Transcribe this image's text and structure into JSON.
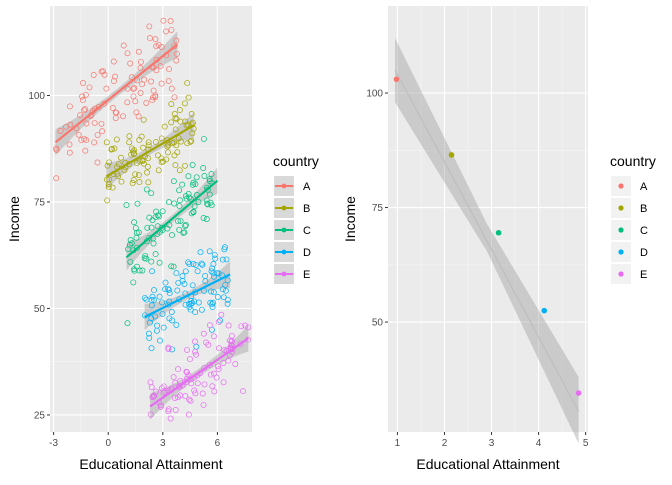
{
  "chart_data": [
    {
      "type": "scatter",
      "title": "",
      "xlabel": "Educational Attainment",
      "ylabel": "Income",
      "xlim": [
        -3.2,
        7.9
      ],
      "ylim": [
        21,
        121
      ],
      "xticks": [
        "-3",
        "0",
        "3",
        "6"
      ],
      "xtick_values": [
        -3,
        0,
        3,
        6
      ],
      "yticks": [
        "25",
        "50",
        "75",
        "100"
      ],
      "ytick_values": [
        25,
        50,
        75,
        100
      ],
      "grid": true,
      "legend_position": "right",
      "legend_title": "country",
      "smooth": "linear fit with confidence band per series",
      "series": [
        {
          "name": "A",
          "color": "#F8766D",
          "x_range": [
            -2.9,
            3.8
          ],
          "y_mean": 101,
          "y_spread": 7,
          "n": 100,
          "fit": [
            [
              -2.9,
              89
            ],
            [
              3.8,
              112
            ]
          ]
        },
        {
          "name": "B",
          "color": "#A3A500",
          "x_range": [
            -0.1,
            4.7
          ],
          "y_mean": 86,
          "y_spread": 5,
          "n": 100,
          "fit": [
            [
              -0.1,
              81
            ],
            [
              4.7,
              93
            ]
          ]
        },
        {
          "name": "C",
          "color": "#00BF7D",
          "x_range": [
            1.0,
            6.0
          ],
          "y_mean": 70,
          "y_spread": 6,
          "n": 100,
          "fit": [
            [
              1.0,
              62
            ],
            [
              6.0,
              80
            ]
          ]
        },
        {
          "name": "D",
          "color": "#00B0F6",
          "x_range": [
            2.0,
            6.7
          ],
          "y_mean": 53,
          "y_spread": 6,
          "n": 100,
          "fit": [
            [
              2.0,
              48
            ],
            [
              6.7,
              58
            ]
          ]
        },
        {
          "name": "E",
          "color": "#E76BF3",
          "x_range": [
            2.3,
            7.7
          ],
          "y_mean": 35,
          "y_spread": 6,
          "n": 100,
          "fit": [
            [
              2.3,
              27
            ],
            [
              7.7,
              43
            ]
          ]
        }
      ]
    },
    {
      "type": "scatter",
      "title": "",
      "xlabel": "Educational Attainment",
      "ylabel": "Income",
      "xlim": [
        0.8,
        5.05
      ],
      "ylim": [
        26,
        119
      ],
      "xticks": [
        "1",
        "2",
        "3",
        "4",
        "5"
      ],
      "xtick_values": [
        1,
        2,
        3,
        4,
        5
      ],
      "yticks": [
        "50",
        "75",
        "100"
      ],
      "ytick_values": [
        50,
        75,
        100
      ],
      "grid": true,
      "legend_position": "right",
      "legend_title": "country",
      "smooth": "linear fit with confidence band",
      "fit": [
        [
          0.95,
          105
        ],
        [
          4.85,
          30.5
        ]
      ],
      "band": {
        "x": [
          0.95,
          4.85
        ],
        "upper": [
          112,
          38
        ],
        "lower": [
          98,
          23.5
        ],
        "center_upper": [
          2.9,
          71.5
        ],
        "center_lower": [
          2.9,
          65.5
        ]
      },
      "series": [
        {
          "name": "A",
          "color": "#F8766D",
          "x": [
            0.98
          ],
          "y": [
            103
          ]
        },
        {
          "name": "B",
          "color": "#A3A500",
          "x": [
            2.15
          ],
          "y": [
            86.5
          ]
        },
        {
          "name": "C",
          "color": "#00BF7D",
          "x": [
            3.15
          ],
          "y": [
            69.5
          ]
        },
        {
          "name": "D",
          "color": "#00B0F6",
          "x": [
            4.12
          ],
          "y": [
            52.5
          ]
        },
        {
          "name": "E",
          "color": "#E76BF3",
          "x": [
            4.85
          ],
          "y": [
            34.5
          ]
        }
      ]
    }
  ]
}
